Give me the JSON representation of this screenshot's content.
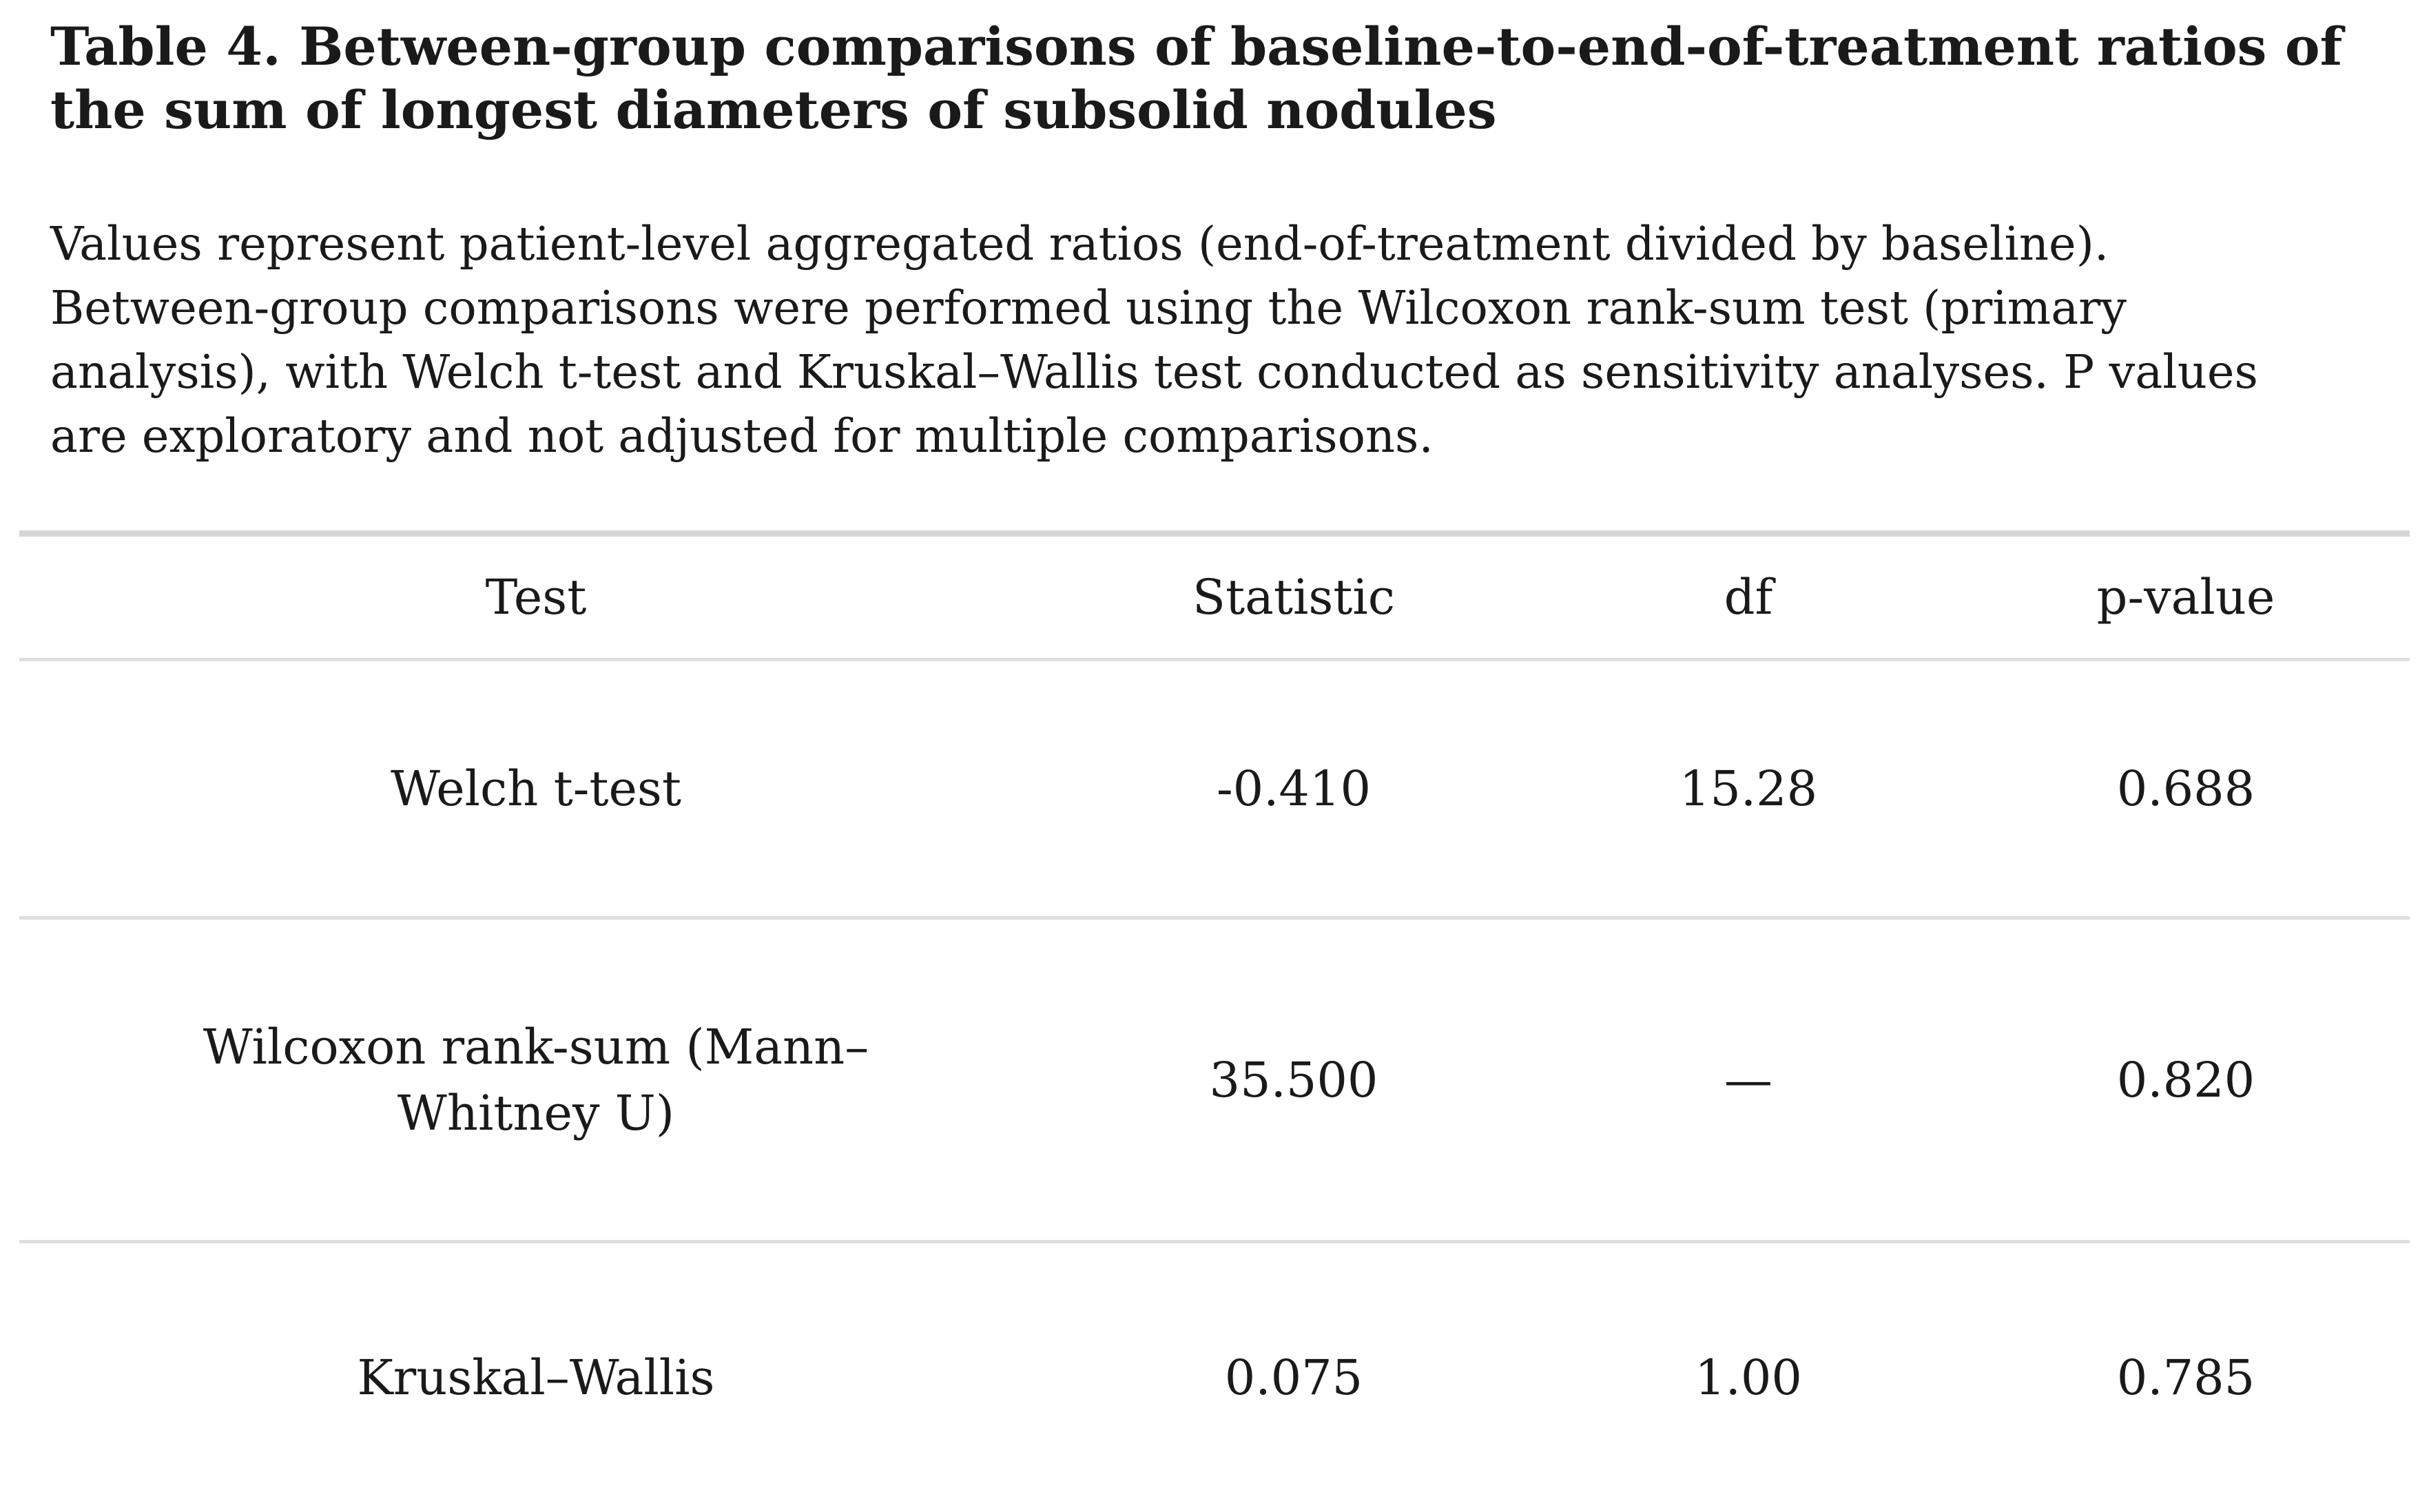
{
  "table": {
    "title": "Table 4. Between-group comparisons of baseline-to-end-of-treatment ratios of the sum of longest diameters of subsolid nodules",
    "note": "Values represent patient-level aggregated ratios (end-of-treatment divided by baseline). Between-group comparisons were performed using the Wilcoxon rank-sum test (primary analysis), with Welch t-test and Kruskal–Wallis test conducted as sensitivity analyses. P values are exploratory and not adjusted for multiple comparisons.",
    "headers": [
      "Test",
      "Statistic",
      "df",
      "p-value"
    ],
    "rows": [
      [
        "Welch t-test",
        "-0.410",
        "15.28",
        "0.688"
      ],
      [
        "Wilcoxon rank-sum (Mann–Whitney U)",
        "35.500",
        "—",
        "0.820"
      ],
      [
        "Kruskal–Wallis",
        "0.075",
        "1.00",
        "0.785"
      ]
    ]
  }
}
